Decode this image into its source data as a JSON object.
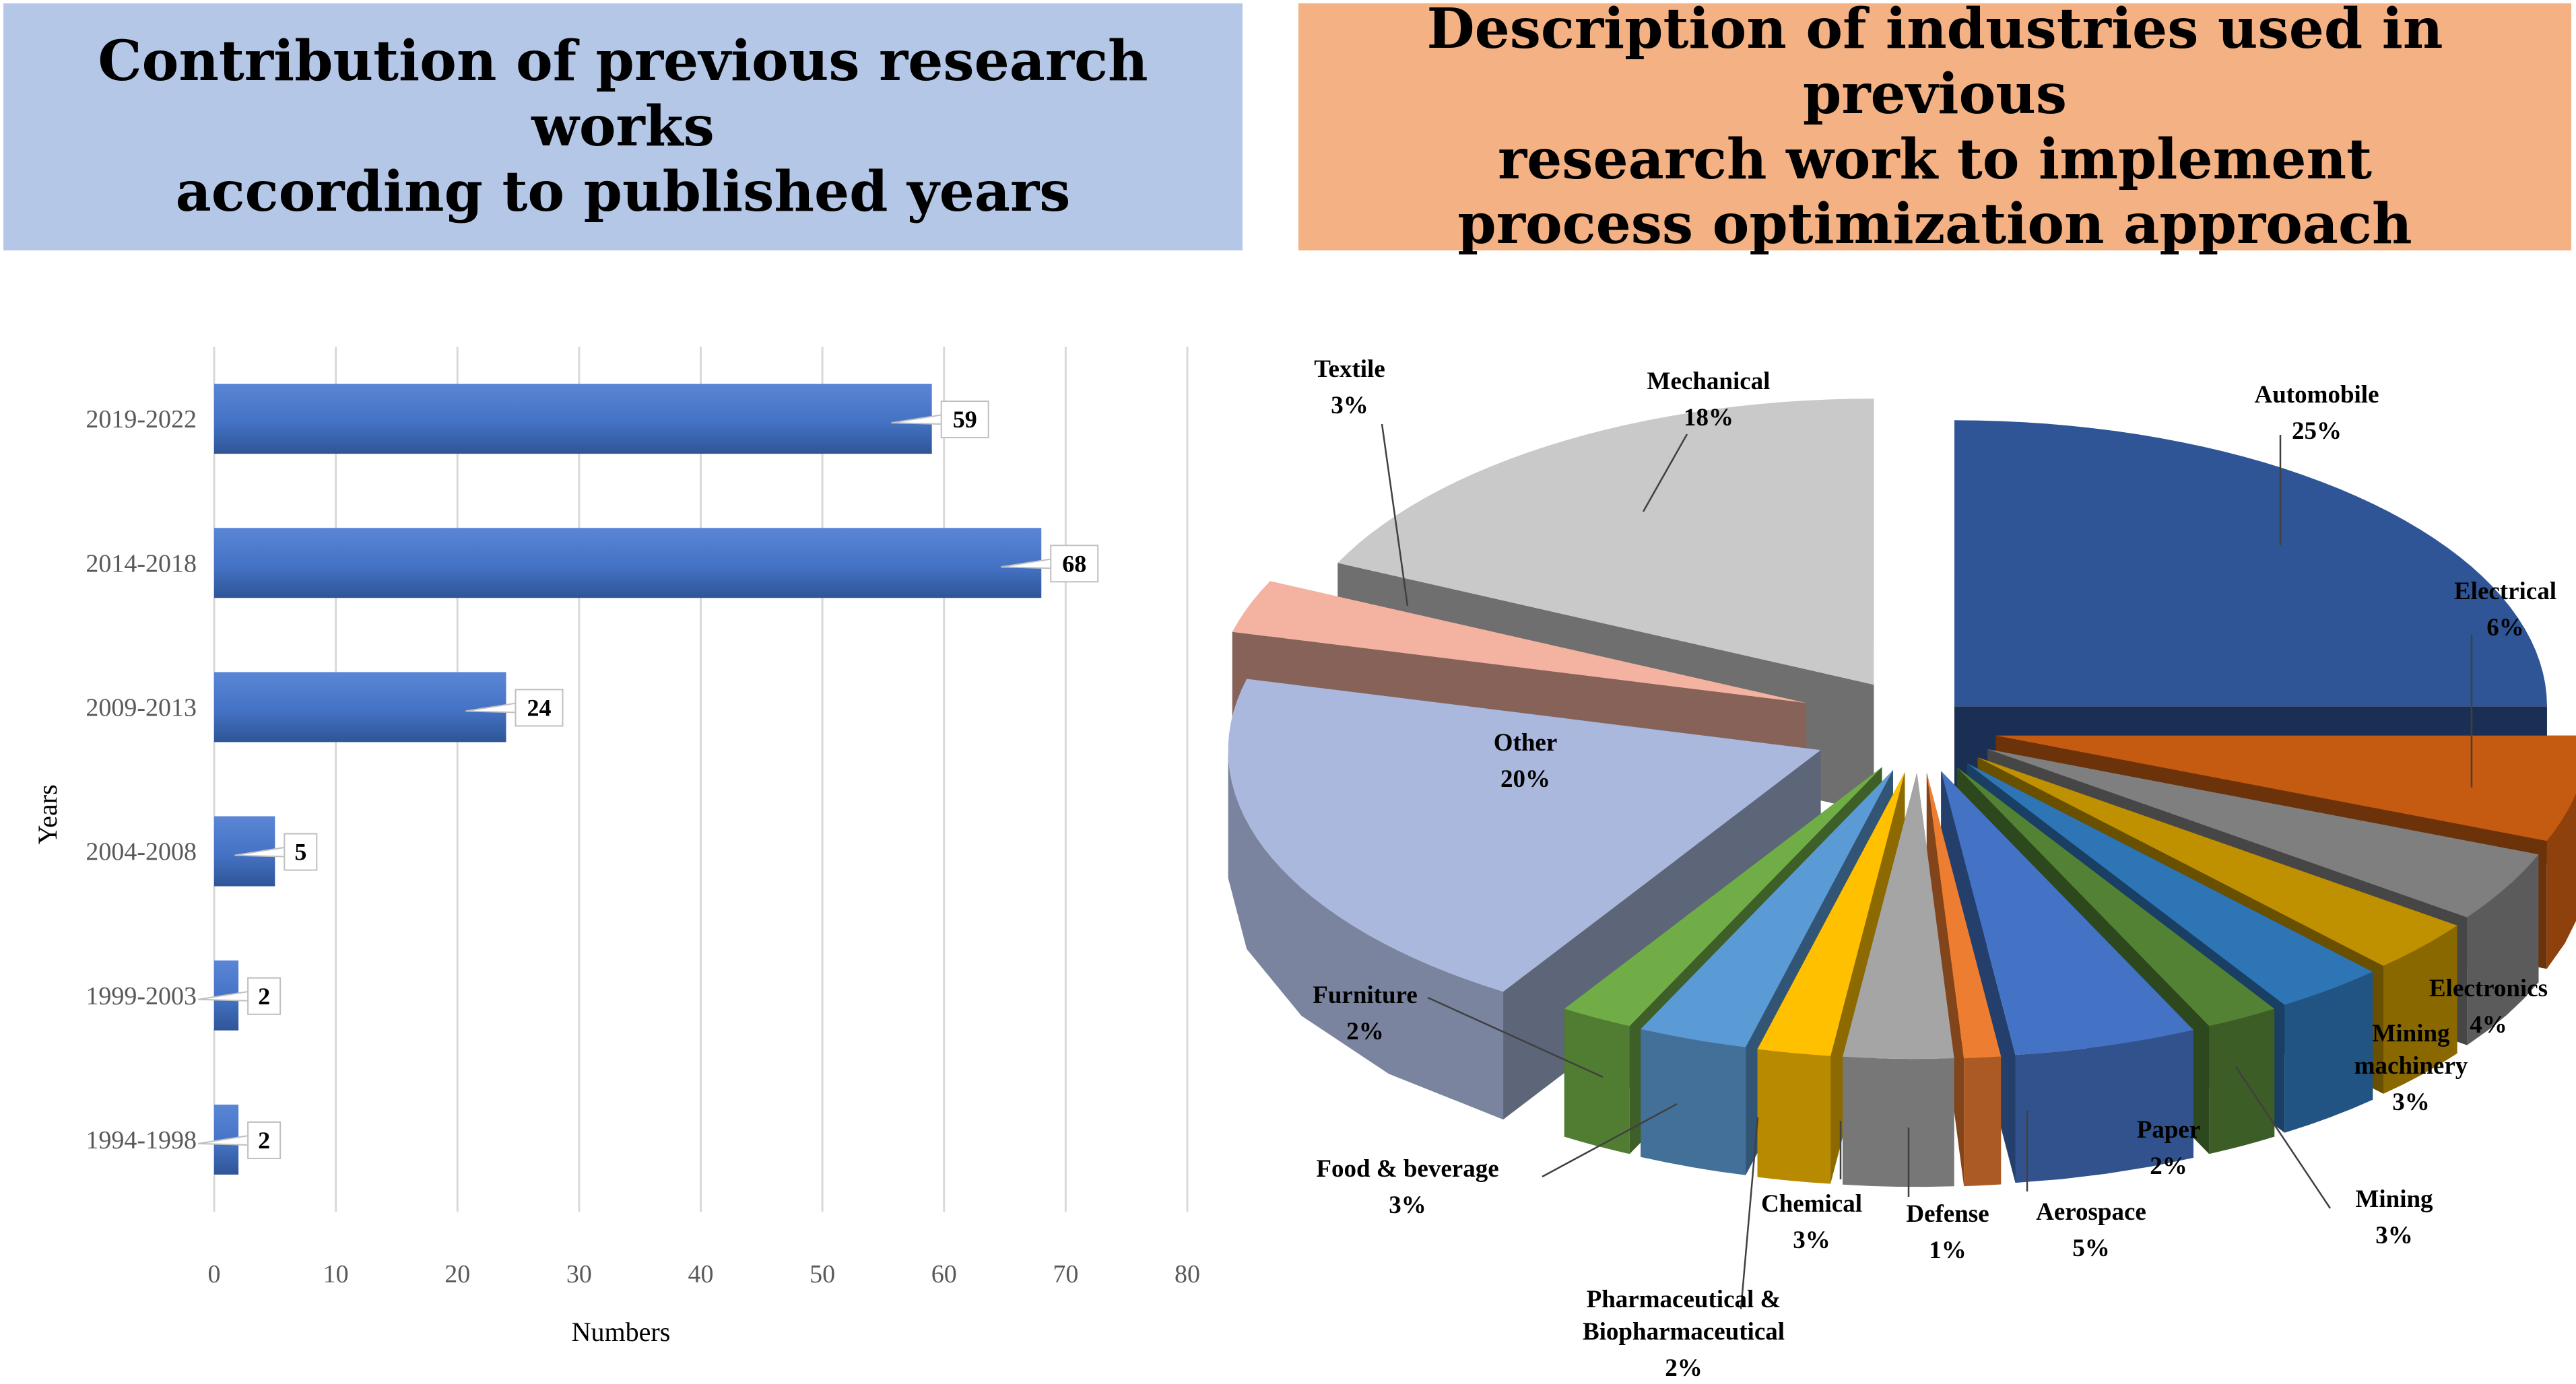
{
  "left_title": "Contribution of previous research works\naccording to published years",
  "right_title": "Description of industries used in previous\nresearch work to implement\nprocess optimization approach",
  "colors": {
    "bar": "#4472c4",
    "bar_dark": "#2f5597",
    "grid": "#d9d9d9",
    "left_title_bg": "#b4c7e7",
    "right_title_bg": "#f4b183"
  },
  "chart_data": [
    {
      "type": "bar",
      "orientation": "horizontal",
      "categories": [
        "2019-2022",
        "2014-2018",
        "2009-2013",
        "2004-2008",
        "1999-2003",
        "1994-1998"
      ],
      "values": [
        59,
        68,
        24,
        5,
        2,
        2
      ],
      "xlabel": "Numbers",
      "ylabel": "Years",
      "xlim": [
        0,
        80
      ],
      "xticks": [
        0,
        10,
        20,
        30,
        40,
        50,
        60,
        70,
        80
      ],
      "grid": true
    },
    {
      "type": "pie",
      "style": "3d-exploded",
      "slices": [
        {
          "label": "Automobile",
          "pct": "25%",
          "value": 25,
          "color": "#2f5597"
        },
        {
          "label": "Electrical",
          "pct": "6%",
          "value": 6,
          "color": "#c55a11"
        },
        {
          "label": "Electronics",
          "pct": "4%",
          "value": 4,
          "color": "#7f7f7f"
        },
        {
          "label": "Mining machinery",
          "pct": "3%",
          "value": 3,
          "color": "#bf9000"
        },
        {
          "label": "Mining",
          "pct": "3%",
          "value": 3,
          "color": "#2e75b6"
        },
        {
          "label": "Paper",
          "pct": "2%",
          "value": 2,
          "color": "#548235"
        },
        {
          "label": "Aerospace",
          "pct": "5%",
          "value": 5,
          "color": "#4472c4"
        },
        {
          "label": "Defense",
          "pct": "1%",
          "value": 1,
          "color": "#ed7d31"
        },
        {
          "label": "Chemical",
          "pct": "3%",
          "value": 3,
          "color": "#a5a5a5"
        },
        {
          "label": "Pharmaceutical & Biopharmaceutical",
          "pct": "2%",
          "value": 2,
          "color": "#ffc000"
        },
        {
          "label": "Food & beverage",
          "pct": "3%",
          "value": 3,
          "color": "#5b9bd5"
        },
        {
          "label": "Furniture",
          "pct": "2%",
          "value": 2,
          "color": "#70ad47"
        },
        {
          "label": "Other",
          "pct": "20%",
          "value": 20,
          "color": "#a9b8dc"
        },
        {
          "label": "Textile",
          "pct": "3%",
          "value": 3,
          "color": "#f4b3a1"
        },
        {
          "label": "Mechanical",
          "pct": "18%",
          "value": 18,
          "color": "#c9c9c9"
        }
      ]
    }
  ]
}
